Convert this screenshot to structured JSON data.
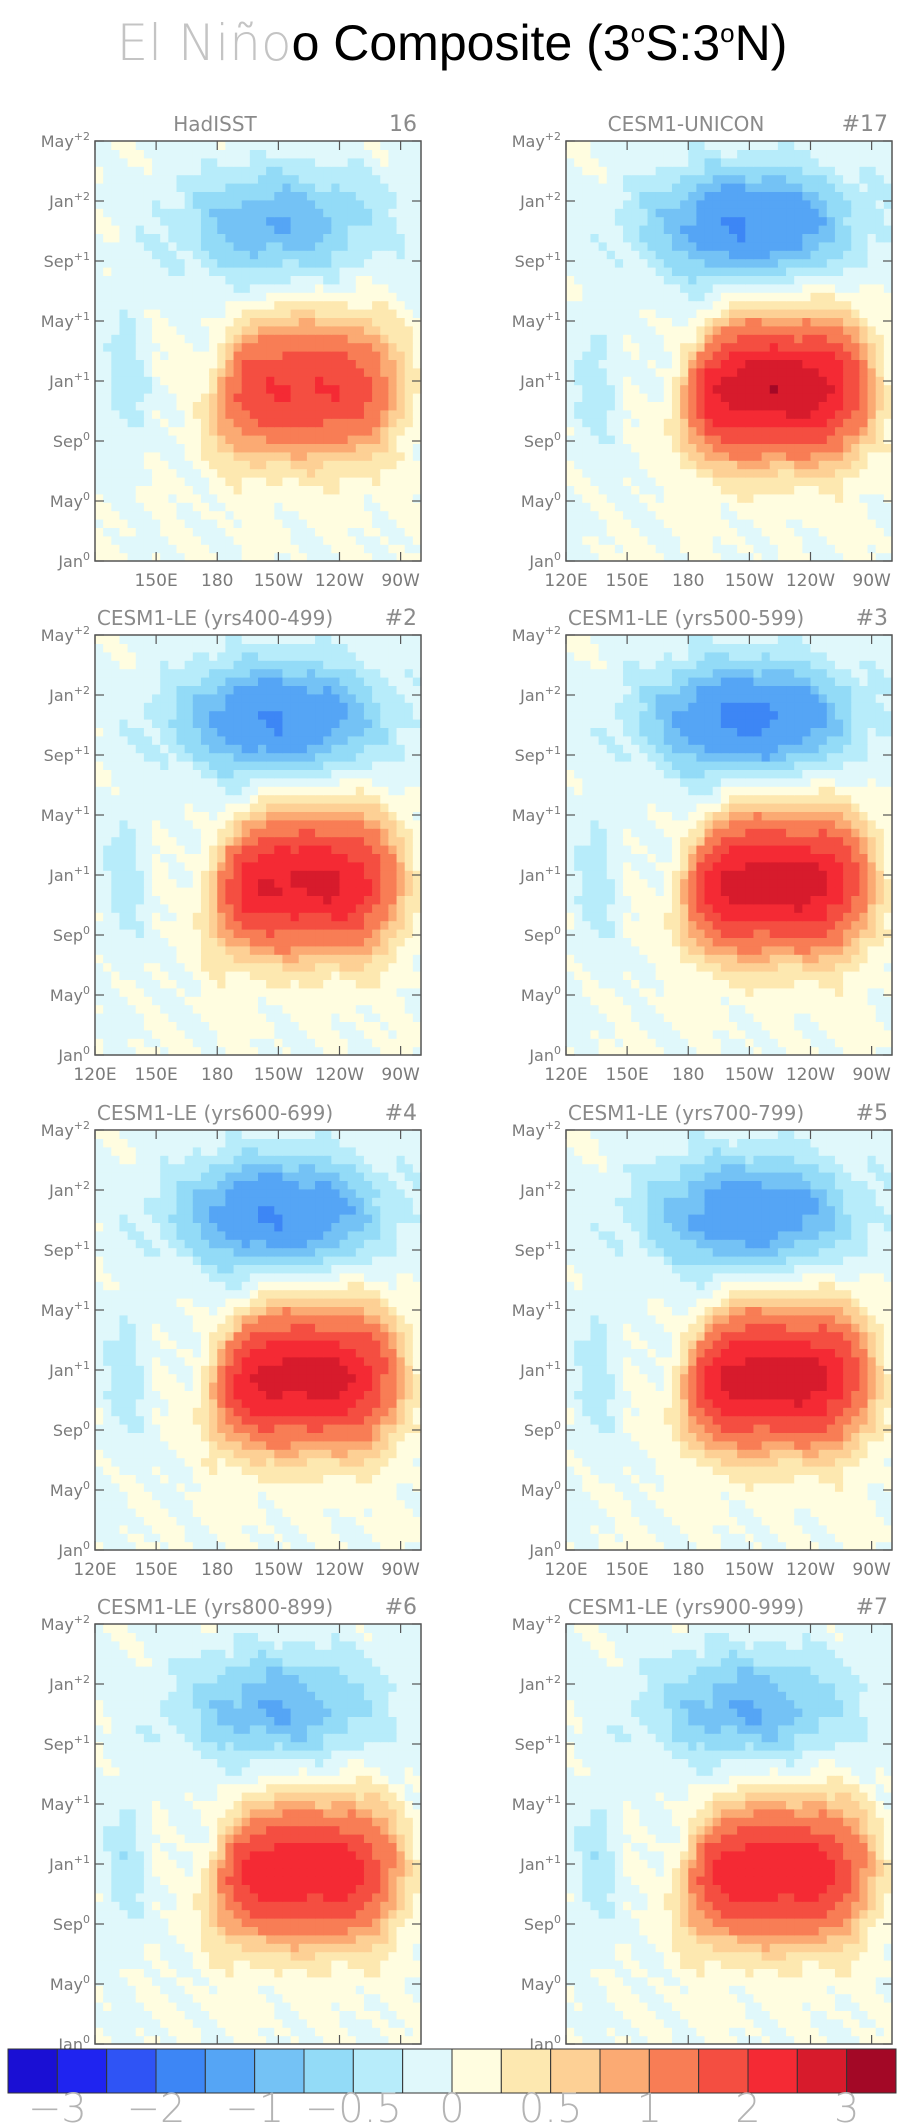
{
  "title": {
    "part1": "El Niño",
    "part2": "o Composite (3",
    "sup1": "o",
    "part3": "S:3",
    "sup2": "o",
    "part4": "N)"
  },
  "chart_data": {
    "type": "heatmap",
    "y_ticks": [
      "Jan0",
      "May0",
      "Sep0",
      "Jan+1",
      "May+1",
      "Sep+1",
      "Jan+2",
      "May+2"
    ],
    "x_ticks": [
      "120E",
      "150E",
      "180",
      "150W",
      "120W",
      "90W"
    ],
    "x_tick_lon": [
      120,
      150,
      180,
      210,
      240,
      270
    ],
    "xlim": [
      120,
      280
    ],
    "ylim": [
      0,
      28
    ],
    "colorbar": {
      "levels": [
        -3,
        -2.5,
        -2,
        -1.5,
        -1,
        -0.75,
        -0.5,
        -0.25,
        0,
        0.25,
        0.5,
        0.75,
        1,
        1.5,
        2,
        2.5,
        3
      ],
      "colors": [
        "#1a0fd4",
        "#1f24f0",
        "#2f54f5",
        "#3d86f5",
        "#55a5f5",
        "#74c2f5",
        "#93dbf7",
        "#b7ecfa",
        "#e0f8fb",
        "#fffde0",
        "#fde8b0",
        "#fdd095",
        "#fbaa73",
        "#f87d55",
        "#f44e41",
        "#f42a34",
        "#d71b2c",
        "#a30826"
      ],
      "labels": [
        "−3",
        "−2",
        "−1",
        "−0.5",
        "0",
        "0.5",
        "1",
        "2",
        "3"
      ],
      "label_levels": [
        -3,
        -2,
        -1,
        -0.5,
        0,
        0.5,
        1,
        2,
        3
      ]
    },
    "panels": [
      {
        "name": "HadISST",
        "number": "16",
        "sep_peak": 2.0,
        "cool": -1.0,
        "show_x_first": false,
        "show_x": true
      },
      {
        "name": "CESM1-UNICON",
        "number": "#17",
        "sep_peak": 2.9,
        "cool": -1.5,
        "show_x_first": true,
        "show_x": true
      },
      {
        "name": "CESM1-LE (yrs400-499)",
        "number": "#2",
        "sep_peak": 2.6,
        "cool": -1.5,
        "show_x_first": true,
        "show_x": true
      },
      {
        "name": "CESM1-LE (yrs500-599)",
        "number": "#3",
        "sep_peak": 2.8,
        "cool": -1.6,
        "show_x_first": true,
        "show_x": true
      },
      {
        "name": "CESM1-LE (yrs600-699)",
        "number": "#4",
        "sep_peak": 2.7,
        "cool": -1.5,
        "show_x_first": true,
        "show_x": true
      },
      {
        "name": "CESM1-LE (yrs700-799)",
        "number": "#5",
        "sep_peak": 2.8,
        "cool": -1.4,
        "show_x_first": true,
        "show_x": true
      },
      {
        "name": "CESM1-LE (yrs800-899)",
        "number": "#6",
        "sep_peak": 2.4,
        "cool": -1.0,
        "show_x_first": true,
        "show_x": true
      },
      {
        "name": "CESM1-LE (yrs900-999)",
        "number": "#7",
        "sep_peak": 2.4,
        "cool": -1.0,
        "show_x_first": true,
        "show_x": true
      }
    ]
  }
}
